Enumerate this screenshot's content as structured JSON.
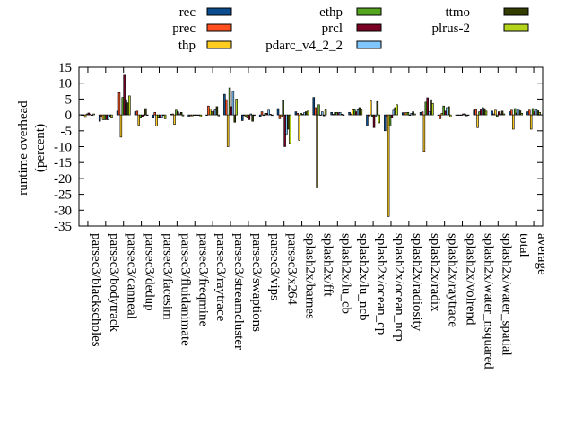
{
  "chart_data": {
    "type": "bar",
    "title": "",
    "xlabel": "",
    "ylabel_lines": [
      "runtime overhead",
      "(percent)"
    ],
    "ylim": [
      -35,
      15
    ],
    "yticks": [
      15,
      10,
      5,
      0,
      -5,
      -10,
      -15,
      -20,
      -25,
      -30,
      -35
    ],
    "grid": false,
    "legend_placement": "top",
    "categories": [
      "parsec3/blackscholes",
      "parsec3/bodytrack",
      "parsec3/canneal",
      "parsec3/dedup",
      "parsec3/facesim",
      "parsec3/fluidanimate",
      "parsec3/freqmine",
      "parsec3/raytrace",
      "parsec3/streamcluster",
      "parsec3/swaptions",
      "parsec3/vips",
      "parsec3/x264",
      "splash2x/barnes",
      "splash2x/fft",
      "splash2x/lu_cb",
      "splash2x/lu_ncb",
      "splash2x/ocean_cp",
      "splash2x/ocean_ncp",
      "splash2x/radiosity",
      "splash2x/radix",
      "splash2x/raytrace",
      "splash2x/volrend",
      "splash2x/water_nsquared",
      "splash2x/water_spatial",
      "total",
      "average"
    ],
    "series": [
      {
        "name": "rec",
        "color": "#0b4d8f",
        "values": [
          0,
          -2,
          1.2,
          1,
          -1,
          0.2,
          -0.4,
          0,
          6.5,
          -1.8,
          -0.6,
          2,
          1,
          5.5,
          0.8,
          0.8,
          -3.5,
          -5,
          0.7,
          0.8,
          0,
          0,
          1.5,
          1.2,
          1,
          1
        ]
      },
      {
        "name": "prec",
        "color": "#ff4f1e",
        "values": [
          0,
          -0.5,
          7,
          1.2,
          0.8,
          0.3,
          -0.3,
          2.8,
          4.8,
          -0.2,
          1,
          -1.2,
          0.5,
          2.3,
          0.2,
          0.3,
          -0.3,
          -0.5,
          0.7,
          1,
          -1.2,
          0,
          1.7,
          0.3,
          1.5,
          1.5
        ]
      },
      {
        "name": "thp",
        "color": "#ffcc1f",
        "values": [
          -0.8,
          -1.5,
          -7,
          -3.2,
          -3.5,
          -3,
          -0.3,
          1.8,
          -10,
          -0.5,
          -0.2,
          -0.5,
          -8,
          -23,
          0.7,
          1.6,
          4.5,
          -32,
          0.7,
          -11.5,
          0.5,
          0,
          -4,
          1.5,
          -4.5,
          -4.5
        ]
      },
      {
        "name": "ethp",
        "color": "#56a51f",
        "values": [
          0.3,
          -1.5,
          5.5,
          -1,
          -1,
          1.5,
          0,
          1,
          8.5,
          -1,
          0.5,
          4.5,
          0.5,
          3.2,
          0.8,
          1.6,
          -0.5,
          -3.5,
          0.8,
          4,
          2.8,
          0,
          1,
          -0.5,
          2,
          2
        ]
      },
      {
        "name": "prcl",
        "color": "#7a0026",
        "values": [
          0.6,
          -1.5,
          12.5,
          -0.5,
          -1,
          1,
          0,
          1.2,
          2.6,
          -1.5,
          0.5,
          -10,
          0.2,
          0,
          0.7,
          1,
          -4,
          -1,
          0,
          5.4,
          1.2,
          0.3,
          1.6,
          1,
          0.6,
          1
        ]
      },
      {
        "name": "pdarc_v4_2_2",
        "color": "#7fc6ff",
        "values": [
          0.2,
          -1.5,
          4.8,
          -0.2,
          -1,
          0.3,
          0,
          1.6,
          7.4,
          0.3,
          1.5,
          -6,
          0.7,
          1,
          0.8,
          1.6,
          -0.5,
          1.5,
          0.5,
          1,
          2.3,
          0.3,
          2.3,
          0.3,
          1.8,
          1.7
        ]
      },
      {
        "name": "ttmo",
        "color": "#333d00",
        "values": [
          -0.1,
          -0.5,
          3.8,
          2,
          0,
          0.8,
          0,
          2.6,
          -2.3,
          -2,
          0.2,
          -4.5,
          1,
          -0.3,
          0.2,
          2.3,
          4.2,
          2.3,
          1,
          4.8,
          2.6,
          -0.3,
          2,
          1.2,
          1.3,
          1.3
        ]
      },
      {
        "name": "plrus-2",
        "color": "#b4d41c",
        "values": [
          0.3,
          -1,
          6,
          0,
          -1.2,
          -0.3,
          -0.7,
          -0.3,
          5,
          -0.2,
          -0.2,
          -9,
          1.2,
          1.6,
          0,
          1.6,
          -2.5,
          3.2,
          0.3,
          3.6,
          -0.6,
          0,
          1.2,
          0.3,
          0.5,
          0.8
        ]
      }
    ]
  }
}
